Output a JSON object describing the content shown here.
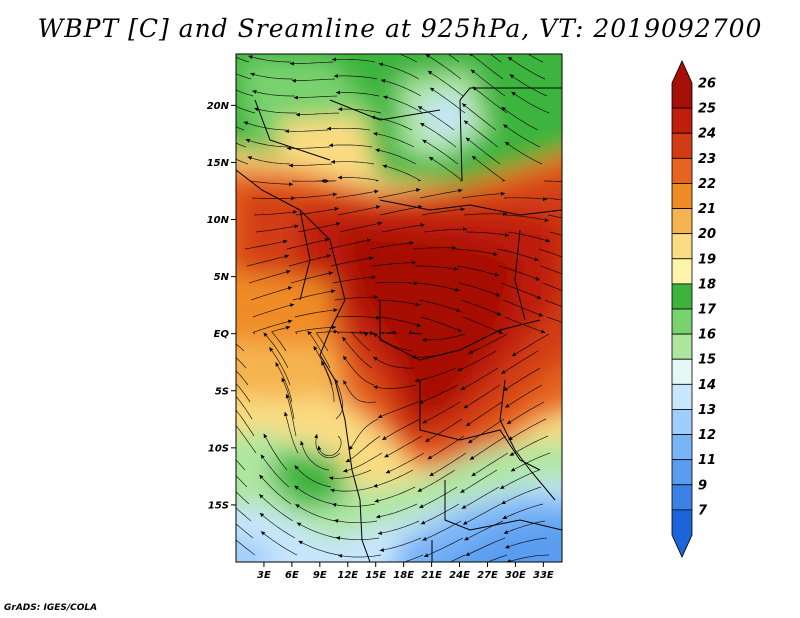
{
  "title": "WBPT [C] and Sreamline at 925hPa, VT: 2019092700",
  "credit": "GrADS: IGES/COLA",
  "map": {
    "lon_range": [
      0,
      35
    ],
    "lat_range": [
      -20,
      24.5
    ],
    "lon_ticks": [
      "3E",
      "6E",
      "9E",
      "12E",
      "15E",
      "18E",
      "21E",
      "24E",
      "27E",
      "30E",
      "33E"
    ],
    "lon_tick_values": [
      3,
      6,
      9,
      12,
      15,
      18,
      21,
      24,
      27,
      30,
      33
    ],
    "lat_ticks": [
      "20N",
      "15N",
      "10N",
      "5N",
      "EQ",
      "5S",
      "10S",
      "15S"
    ],
    "lat_tick_values": [
      20,
      15,
      10,
      5,
      0,
      -5,
      -10,
      -15
    ]
  },
  "colorbar": {
    "labels": [
      "7",
      "9",
      "11",
      "12",
      "13",
      "14",
      "15",
      "16",
      "17",
      "18",
      "19",
      "20",
      "21",
      "22",
      "23",
      "24",
      "25",
      "26"
    ],
    "colors": [
      "#1c64d8",
      "#3c82e6",
      "#5a9cf0",
      "#78b4f6",
      "#a0cdfa",
      "#c8e6fc",
      "#e6f8f5",
      "#aee6a0",
      "#78d26e",
      "#3cb43c",
      "#fff5aa",
      "#fadc82",
      "#f5b450",
      "#f08c28",
      "#e6641e",
      "#d23c14",
      "#be1e0a",
      "#a50f05"
    ]
  }
}
